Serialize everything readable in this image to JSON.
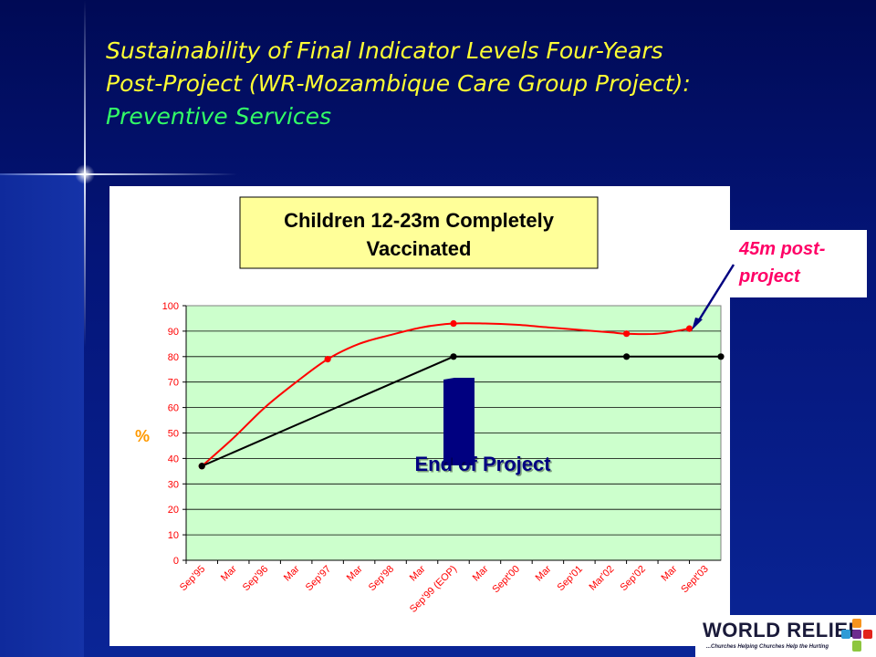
{
  "slide": {
    "title_line1": "Sustainability of Final Indicator Levels Four-Years",
    "title_line2": "Post-Project (WR-Mozambique Care Group Project):",
    "title_line3": "Preventive Services"
  },
  "callout": {
    "line1": "45m post-",
    "line2": "project"
  },
  "annotation": {
    "text": "End of Project"
  },
  "logo": {
    "name": "WORLD RELIEF",
    "tagline": "...Churches Helping Churches Help the Hurting"
  },
  "colors": {
    "title_yellow": "#ffff33",
    "title_green": "#33ff66",
    "plot_bg": "#ccffcc",
    "red_series": "#ff0000",
    "black_series": "#000000",
    "arrow_navy": "#000080",
    "callout_pink": "#ff0066",
    "title_box_bg": "#ffff99"
  },
  "chart_data": {
    "type": "line",
    "title_line1": "Children 12-23m Completely",
    "title_line2": "Vaccinated",
    "ylabel": "%",
    "ylim": [
      0,
      100
    ],
    "yticks": [
      0,
      10,
      20,
      30,
      40,
      50,
      60,
      70,
      80,
      90,
      100
    ],
    "grid": true,
    "categories": [
      "Sep'95",
      "Mar",
      "Sep'96",
      "Mar",
      "Sep'97",
      "Mar",
      "Sep'98",
      "Mar",
      "Sep'99 (EOP)",
      "Mar",
      "Sept'00",
      "Mar",
      "Sep'01",
      "Mar'02",
      "Sep'02",
      "Mar",
      "Sept'03"
    ],
    "series": [
      {
        "color": "#ff0000",
        "smooth": true,
        "points": [
          {
            "x": 0,
            "y": 37
          },
          {
            "x": 4,
            "y": 79
          },
          {
            "x": 8,
            "y": 93
          },
          {
            "x": 13.5,
            "y": 89
          },
          {
            "x": 15.5,
            "y": 91
          }
        ],
        "curve_points": [
          {
            "x": 0,
            "y": 37
          },
          {
            "x": 1,
            "y": 48
          },
          {
            "x": 2,
            "y": 60
          },
          {
            "x": 3,
            "y": 70
          },
          {
            "x": 4,
            "y": 79
          },
          {
            "x": 5,
            "y": 85
          },
          {
            "x": 6,
            "y": 88.5
          },
          {
            "x": 7,
            "y": 91.5
          },
          {
            "x": 8,
            "y": 93
          },
          {
            "x": 9,
            "y": 93
          },
          {
            "x": 10,
            "y": 92.5
          },
          {
            "x": 11,
            "y": 91.5
          },
          {
            "x": 12,
            "y": 90.5
          },
          {
            "x": 13,
            "y": 89.5
          },
          {
            "x": 13.5,
            "y": 89
          },
          {
            "x": 14.5,
            "y": 89
          },
          {
            "x": 15.5,
            "y": 91
          }
        ]
      },
      {
        "color": "#000000",
        "smooth": false,
        "points": [
          {
            "x": 0,
            "y": 37
          },
          {
            "x": 8,
            "y": 80
          },
          {
            "x": 13.5,
            "y": 80
          },
          {
            "x": 16.5,
            "y": 80
          }
        ]
      }
    ]
  }
}
